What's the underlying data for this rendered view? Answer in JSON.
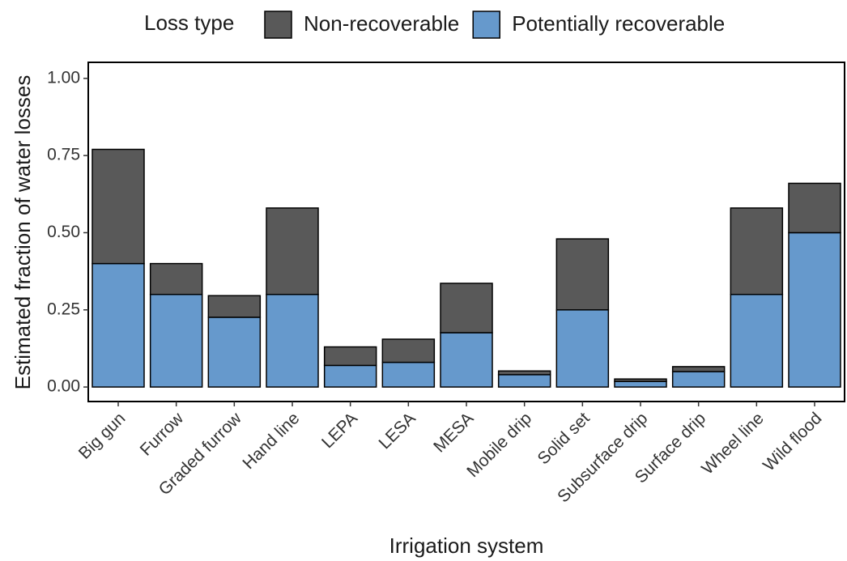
{
  "chart_data": {
    "type": "stacked-bar",
    "x_label": "Irrigation system",
    "y_label": "Estimated fraction of water losses",
    "legend_title": "Loss type",
    "legend_position": "top",
    "categories": [
      "Big gun",
      "Furrow",
      "Graded furrow",
      "Hand line",
      "LEPA",
      "LESA",
      "MESA",
      "Mobile drip",
      "Solid set",
      "Subsurface drip",
      "Surface drip",
      "Wheel line",
      "Wild flood"
    ],
    "series": [
      {
        "name": "Non-recoverable",
        "color": "#595959",
        "values": [
          0.37,
          0.1,
          0.07,
          0.28,
          0.06,
          0.075,
          0.16,
          0.012,
          0.23,
          0.008,
          0.016,
          0.28,
          0.16
        ]
      },
      {
        "name": "Potentially recoverable",
        "color": "#6699cc",
        "values": [
          0.4,
          0.3,
          0.226,
          0.3,
          0.07,
          0.08,
          0.176,
          0.04,
          0.25,
          0.018,
          0.05,
          0.3,
          0.5
        ]
      }
    ],
    "ylim": [
      -0.047,
      1.052
    ],
    "yticks": [
      {
        "value": 0,
        "label": "0.00"
      },
      {
        "value": 0.25,
        "label": "0.25"
      },
      {
        "value": 0.5,
        "label": "0.50"
      },
      {
        "value": 0.75,
        "label": "0.75"
      },
      {
        "value": 1,
        "label": "1.00"
      }
    ]
  }
}
